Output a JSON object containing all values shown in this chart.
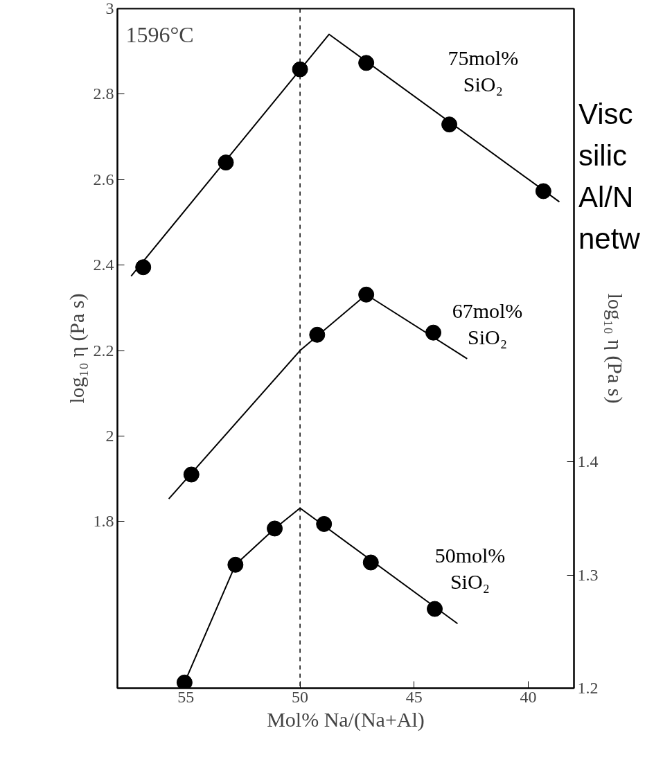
{
  "chart_data": {
    "type": "scatter",
    "xlabel": "Mol% Na/(Na+Al)",
    "ylabel": "log₁₀ η (Pa s)",
    "y2label": "log₁₀ η (Pa s)",
    "xlim": [
      58,
      38
    ],
    "xticks": [
      55,
      50,
      45,
      40
    ],
    "ylim": [
      1.41,
      3
    ],
    "yticks": [
      1.8,
      2,
      2.2,
      2.4,
      2.6,
      2.8,
      3
    ],
    "y2lim": [
      1.2,
      1.8
    ],
    "y2ticks": [
      1.2,
      1.3,
      1.4
    ],
    "grid": false,
    "series": [
      {
        "name": "75mol%\nSiO₂",
        "marker": "circle",
        "color": "#000000",
        "x": [
          56.87,
          53.25,
          50.0,
          47.1,
          43.46,
          39.34
        ],
        "values": [
          2.395,
          2.64,
          2.858,
          2.873,
          2.729,
          2.573
        ]
      },
      {
        "type": "line",
        "marker": "none",
        "color": "#000000",
        "x": [
          57.4,
          48.73,
          38.64
        ],
        "values": [
          2.374,
          2.94,
          2.548
        ]
      },
      {
        "name": "67mol%\nSiO₂",
        "marker": "circle",
        "color": "#000000",
        "x": [
          54.76,
          49.25,
          47.1,
          44.16
        ],
        "values": [
          1.91,
          2.237,
          2.331,
          2.242
        ]
      },
      {
        "type": "line",
        "marker": "none",
        "color": "#000000",
        "x": [
          55.75,
          50.0,
          47.1,
          42.68
        ],
        "values": [
          1.853,
          2.2,
          2.331,
          2.181
        ]
      },
      {
        "name": "50mol%\nSiO₂",
        "marker": "circle",
        "color": "#000000",
        "axis": "y2",
        "x": [
          55.06,
          52.83,
          51.11,
          48.95,
          46.9,
          44.1
        ],
        "values": [
          1.205,
          1.309,
          1.341,
          1.345,
          1.311,
          1.27
        ]
      },
      {
        "type": "line",
        "marker": "none",
        "color": "#000000",
        "axis": "y2",
        "x": [
          55.06,
          52.83,
          51.11,
          50.0,
          43.1
        ],
        "values": [
          1.205,
          1.309,
          1.341,
          1.359,
          1.257
        ]
      }
    ],
    "ref_lines": [
      {
        "axis": "x",
        "value": 50,
        "color": "#000000",
        "line_style": "dashed"
      }
    ],
    "annotations": [
      "1596°C",
      "Visc",
      "silic",
      "Al/N",
      "netw"
    ]
  }
}
